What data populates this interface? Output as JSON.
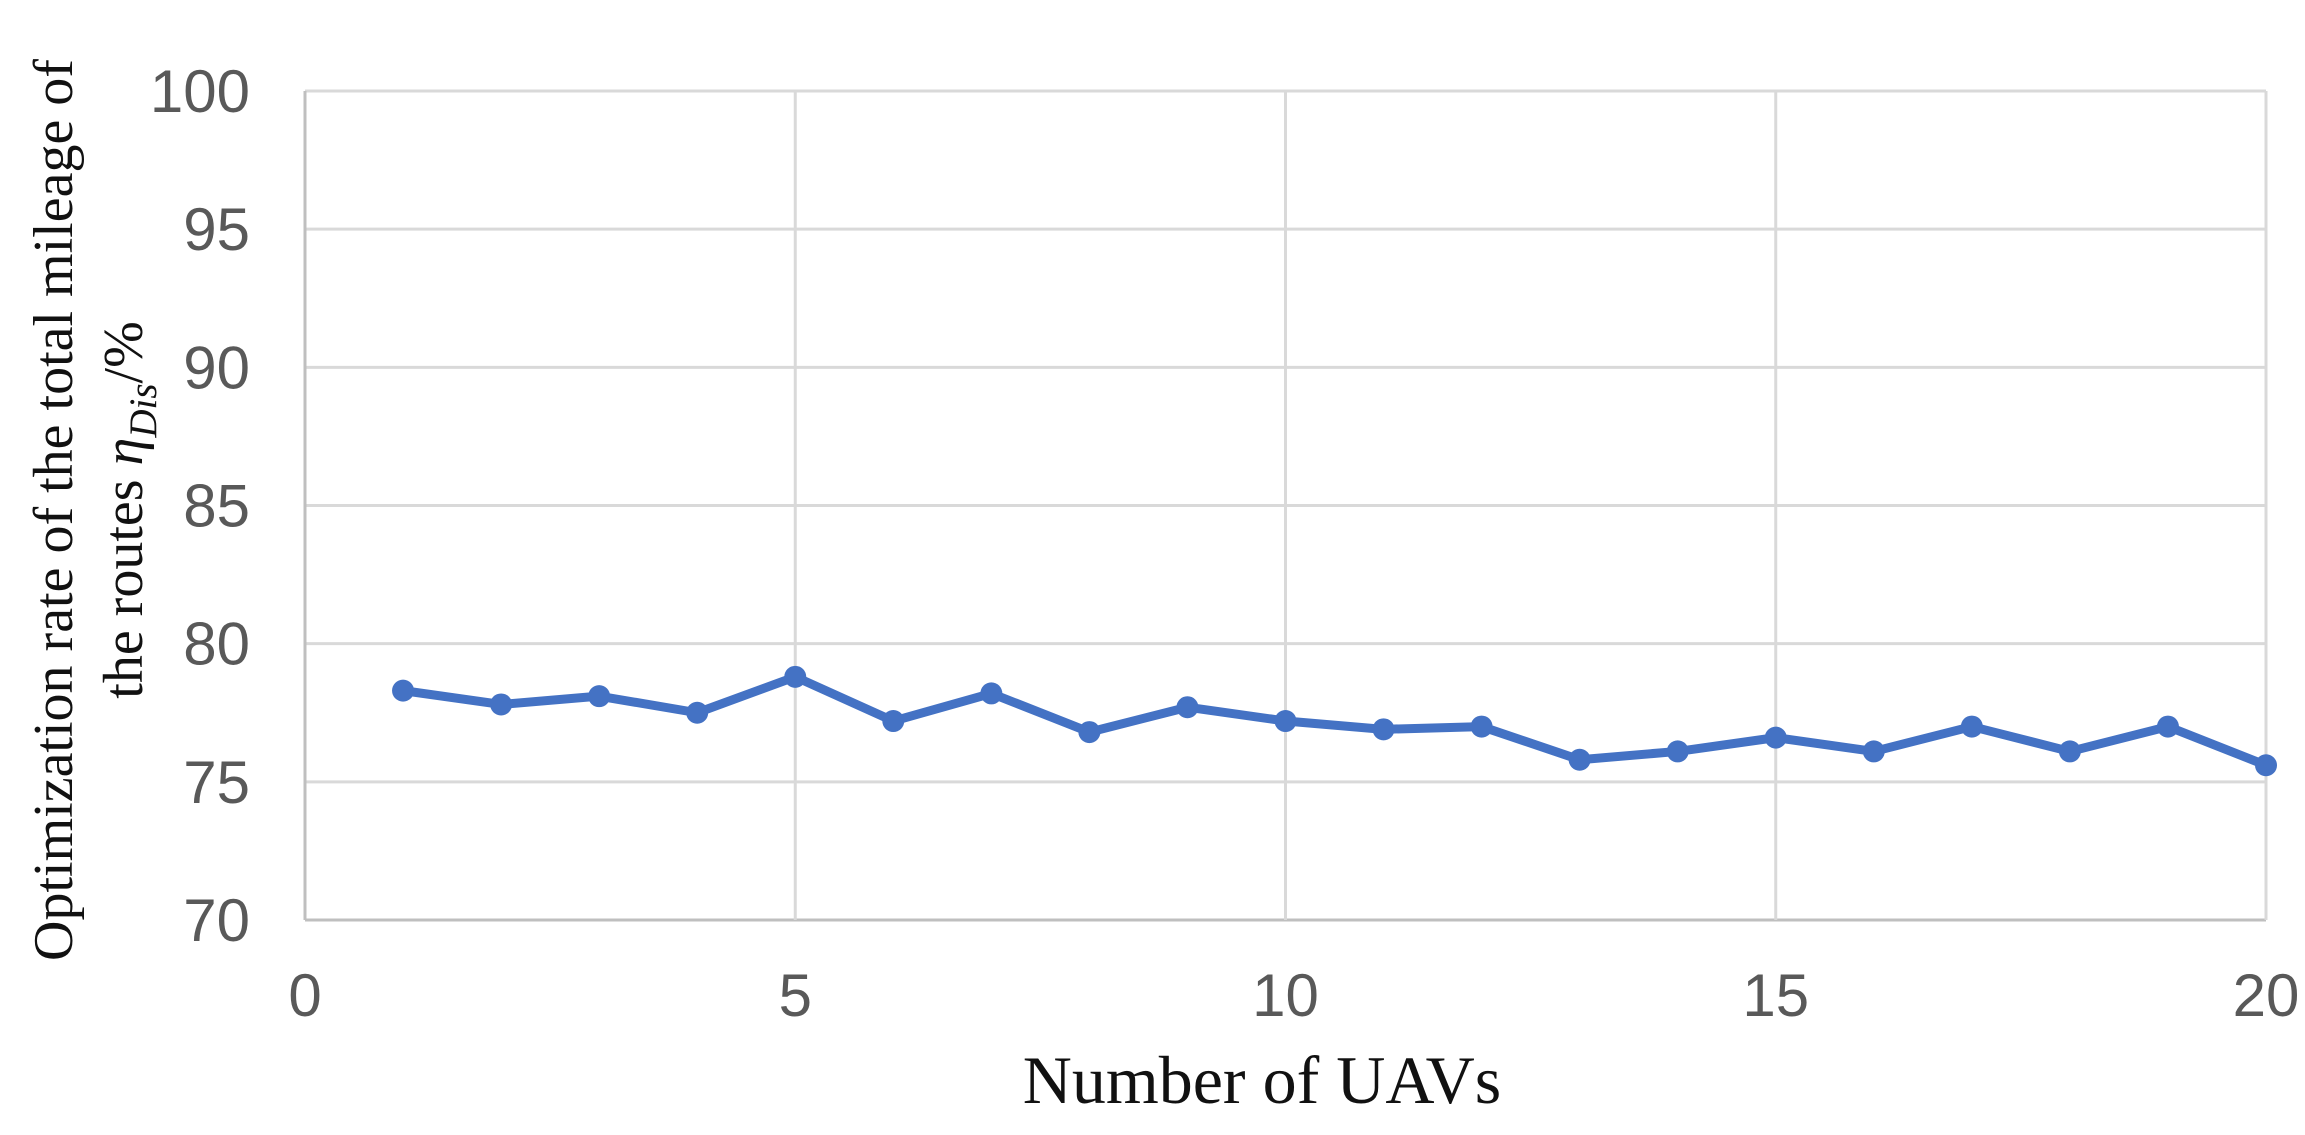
{
  "chart_data": {
    "type": "line",
    "title": "",
    "xlabel": "Number of UAVs",
    "ylabel": "Optimization rate of the total mileage of the routes ηDis/%",
    "ylabel_line1": "Optimization rate of the total mileage of",
    "ylabel_line2_prefix": "the routes ",
    "ylabel_eta": "η",
    "ylabel_eta_sub": "Dis",
    "ylabel_suffix": "/%",
    "x": [
      1,
      2,
      3,
      4,
      5,
      6,
      7,
      8,
      9,
      10,
      11,
      12,
      13,
      14,
      15,
      16,
      17,
      18,
      19,
      20
    ],
    "values": [
      78.3,
      77.8,
      78.1,
      77.5,
      78.8,
      77.2,
      78.2,
      76.8,
      77.7,
      77.2,
      76.9,
      77.0,
      75.8,
      76.1,
      76.6,
      76.1,
      77.0,
      76.1,
      77.0,
      75.6
    ],
    "x_ticks": [
      0,
      5,
      10,
      15,
      20
    ],
    "y_ticks": [
      70,
      75,
      80,
      85,
      90,
      95,
      100
    ],
    "xlim": [
      0,
      20
    ],
    "ylim": [
      70,
      100
    ],
    "grid": true,
    "legend": "none",
    "marker": "circle",
    "colors": {
      "line": "#4472C4",
      "gridline": "#D9D9D9",
      "axis_line": "#BFBFBF",
      "tick_label": "#595959",
      "axis_title": "#111111"
    }
  }
}
